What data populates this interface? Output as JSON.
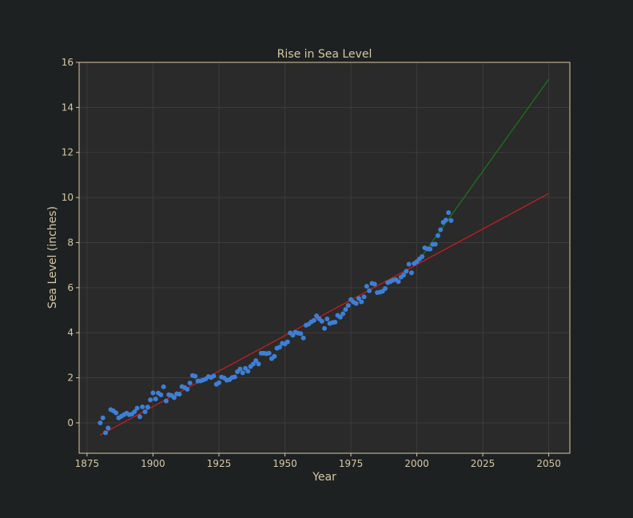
{
  "chart_data": {
    "type": "scatter",
    "title": "Rise in Sea Level",
    "xlabel": "Year",
    "ylabel": "Sea Level (inches)",
    "xlim": [
      1872,
      2058
    ],
    "ylim": [
      -1.35,
      16
    ],
    "xticks": [
      1875,
      1900,
      1925,
      1950,
      1975,
      2000,
      2025,
      2050
    ],
    "yticks": [
      0,
      2,
      4,
      6,
      8,
      10,
      12,
      14,
      16
    ],
    "grid": true,
    "legend": "none",
    "colors": {
      "background": "#1e2122",
      "plot_bg": "#2a2a2a",
      "frame": "#d9c8a0",
      "grid": "#3c3c3c",
      "text": "#d6c8a6",
      "points": "#3d7fd6",
      "fit_all": "#cc1f1f",
      "fit_recent": "#1a7a1a"
    },
    "series": [
      {
        "type": "scatter",
        "x": [
          1880,
          1881,
          1882,
          1883,
          1884,
          1885,
          1886,
          1887,
          1888,
          1889,
          1890,
          1891,
          1892,
          1893,
          1894,
          1895,
          1896,
          1897,
          1898,
          1899,
          1900,
          1901,
          1902,
          1903,
          1904,
          1905,
          1906,
          1907,
          1908,
          1909,
          1910,
          1911,
          1912,
          1913,
          1914,
          1915,
          1916,
          1917,
          1918,
          1919,
          1920,
          1921,
          1922,
          1923,
          1924,
          1925,
          1926,
          1927,
          1928,
          1929,
          1930,
          1931,
          1932,
          1933,
          1934,
          1935,
          1936,
          1937,
          1938,
          1939,
          1940,
          1941,
          1942,
          1943,
          1944,
          1945,
          1946,
          1947,
          1948,
          1949,
          1950,
          1951,
          1952,
          1953,
          1954,
          1955,
          1956,
          1957,
          1958,
          1959,
          1960,
          1961,
          1962,
          1963,
          1964,
          1965,
          1966,
          1967,
          1968,
          1969,
          1970,
          1971,
          1972,
          1973,
          1974,
          1975,
          1976,
          1977,
          1978,
          1979,
          1980,
          1981,
          1982,
          1983,
          1984,
          1985,
          1986,
          1987,
          1988,
          1989,
          1990,
          1991,
          1992,
          1993,
          1994,
          1995,
          1996,
          1997,
          1998,
          1999,
          2000,
          2001,
          2002,
          2003,
          2004,
          2005,
          2006,
          2007,
          2008,
          2009,
          2010,
          2011,
          2012,
          2013
        ],
        "y": [
          0.0,
          0.22,
          -0.44,
          -0.23,
          0.59,
          0.53,
          0.44,
          0.22,
          0.29,
          0.36,
          0.43,
          0.36,
          0.39,
          0.49,
          0.65,
          0.27,
          0.71,
          0.49,
          0.7,
          1.02,
          1.33,
          1.06,
          1.32,
          1.24,
          1.6,
          0.97,
          1.25,
          1.22,
          1.12,
          1.29,
          1.27,
          1.61,
          1.57,
          1.49,
          1.77,
          2.1,
          2.07,
          1.85,
          1.86,
          1.9,
          1.95,
          2.05,
          2.01,
          2.08,
          1.71,
          1.78,
          2.03,
          1.99,
          1.89,
          1.92,
          2.01,
          2.04,
          2.27,
          2.39,
          2.22,
          2.42,
          2.29,
          2.5,
          2.61,
          2.76,
          2.61,
          3.09,
          3.09,
          3.07,
          3.09,
          2.85,
          2.95,
          3.31,
          3.36,
          3.53,
          3.5,
          3.59,
          3.99,
          3.89,
          4.02,
          3.98,
          3.96,
          3.77,
          4.33,
          4.38,
          4.48,
          4.55,
          4.75,
          4.62,
          4.51,
          4.19,
          4.61,
          4.41,
          4.45,
          4.47,
          4.77,
          4.69,
          4.84,
          5.03,
          5.21,
          5.47,
          5.36,
          5.3,
          5.52,
          5.37,
          5.59,
          6.06,
          5.86,
          6.19,
          6.16,
          5.78,
          5.8,
          5.84,
          5.96,
          6.22,
          6.27,
          6.33,
          6.36,
          6.27,
          6.47,
          6.56,
          6.73,
          7.04,
          6.66,
          7.07,
          7.15,
          7.27,
          7.38,
          7.77,
          7.72,
          7.71,
          7.92,
          7.93,
          8.31,
          8.57,
          8.9,
          9.0,
          9.33,
          8.98
        ]
      },
      {
        "type": "line",
        "x": [
          1880,
          2050
        ],
        "y": [
          -0.54,
          10.18
        ]
      },
      {
        "type": "line",
        "x": [
          2000,
          2050
        ],
        "y": [
          7.08,
          15.25
        ]
      }
    ]
  }
}
